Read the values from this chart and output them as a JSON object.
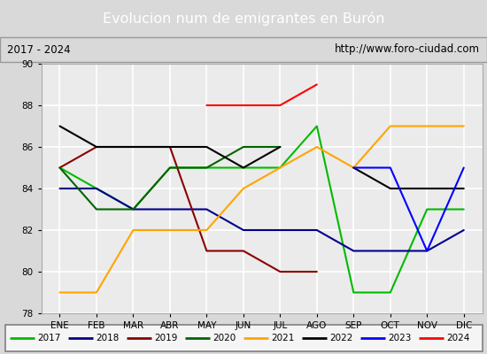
{
  "title": "Evolucion num de emigrantes en Burón",
  "subtitle_left": "2017 - 2024",
  "subtitle_right": "http://www.foro-ciudad.com",
  "months": [
    "ENE",
    "FEB",
    "MAR",
    "ABR",
    "MAY",
    "JUN",
    "JUL",
    "AGO",
    "SEP",
    "OCT",
    "NOV",
    "DIC"
  ],
  "ylim": [
    78,
    90
  ],
  "yticks": [
    78,
    80,
    82,
    84,
    86,
    88,
    90
  ],
  "series": {
    "2017": {
      "color": "#00bb00",
      "values": [
        85,
        84,
        83,
        85,
        85,
        85,
        85,
        87,
        79,
        79,
        83,
        83
      ]
    },
    "2018": {
      "color": "#00008b",
      "values": [
        84,
        84,
        83,
        83,
        83,
        82,
        82,
        82,
        81,
        81,
        81,
        82
      ]
    },
    "2019": {
      "color": "#8b0000",
      "values": [
        85,
        86,
        86,
        86,
        81,
        81,
        80,
        80,
        null,
        null,
        null,
        null
      ]
    },
    "2020": {
      "color": "#006400",
      "values": [
        85,
        83,
        83,
        85,
        85,
        86,
        86,
        null,
        null,
        null,
        null,
        null
      ]
    },
    "2021": {
      "color": "#ffa500",
      "values": [
        79,
        79,
        82,
        82,
        82,
        84,
        85,
        86,
        85,
        87,
        87,
        87
      ]
    },
    "2022": {
      "color": "#000000",
      "values": [
        87,
        86,
        86,
        86,
        86,
        85,
        86,
        null,
        85,
        84,
        84,
        84
      ]
    },
    "2023": {
      "color": "#0000ff",
      "values": [
        null,
        null,
        null,
        null,
        null,
        null,
        null,
        null,
        85,
        85,
        81,
        85
      ]
    },
    "2024": {
      "color": "#ff0000",
      "values": [
        null,
        null,
        null,
        null,
        88,
        88,
        88,
        89,
        null,
        null,
        null,
        null
      ]
    }
  },
  "legend_order": [
    "2017",
    "2018",
    "2019",
    "2020",
    "2021",
    "2022",
    "2023",
    "2024"
  ],
  "bg_color": "#d9d9d9",
  "plot_bg_color": "#ebebeb",
  "title_bg_color": "#4d8fcc",
  "title_color": "#ffffff",
  "header_bg_color": "#d0d0d0",
  "grid_color": "#ffffff",
  "legend_bg_color": "#f5f5f5",
  "legend_border_color": "#808080"
}
